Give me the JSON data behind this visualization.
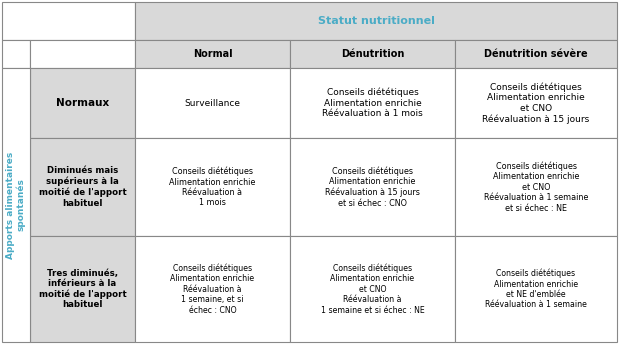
{
  "header_top": "Statut nutritionnel",
  "col_headers": [
    "Normal",
    "Dénutrition",
    "Dénutrition sévère"
  ],
  "row_headers": [
    "Normaux",
    "Diminués mais\nsupérieurs à la\nmoitié de l'apport\nhabituel",
    "Tres diminués,\ninférieurs à la\nmoitié de l'apport\nhabituel"
  ],
  "side_label": "Apports alimentaires\nspontanés",
  "cells": [
    [
      "Surveillance",
      "Conseils diététiques\nAlimentation enrichie\nRéévaluation à 1 mois",
      "Conseils diététiques\nAlimentation enrichie\net CNO\nRéévaluation à 15 jours"
    ],
    [
      "Conseils diététiques\nAlimentation enrichie\nRéévaluation à\n1 mois",
      "Conseils diététiques\nAlimentation enrichie\nRéévaluation à 15 jours\net si échec : CNO",
      "Conseils diététiques\nAlimentation enrichie\net CNO\nRéévaluation à 1 semaine\net si échec : NE"
    ],
    [
      "Conseils diététiques\nAlimentation enrichie\nRéévaluation à\n1 semaine, et si\néchec : CNO",
      "Conseils diététiques\nAlimentation enrichie\net CNO\nRéévaluation à\n1 semaine et si échec : NE",
      "Conseils diététiques\nAlimentation enrichie\net NE d'emblée\nRéévaluation à 1 semaine"
    ]
  ],
  "color_header_bg": "#d9d9d9",
  "color_header_top_bg": "#d9d9d9",
  "color_header_top_text": "#4bacc6",
  "color_col_header_text": "#000000",
  "color_row_header_bg": "#d9d9d9",
  "color_row_header_text": "#000000",
  "color_side_label_text": "#4bacc6",
  "color_cell_bg": "#ffffff",
  "color_cell_text": "#000000",
  "color_border": "#888888",
  "figsize": [
    6.19,
    3.44
  ],
  "dpi": 100
}
